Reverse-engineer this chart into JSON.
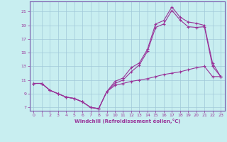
{
  "xlabel": "Windchill (Refroidissement éolien,°C)",
  "bg_color": "#c8eef0",
  "grid_color": "#a0c8d8",
  "line_color": "#993399",
  "spine_color": "#7755aa",
  "xlim": [
    -0.5,
    23.5
  ],
  "ylim": [
    6.5,
    22.5
  ],
  "xticks": [
    0,
    1,
    2,
    3,
    4,
    5,
    6,
    7,
    8,
    9,
    10,
    11,
    12,
    13,
    14,
    15,
    16,
    17,
    18,
    19,
    20,
    21,
    22,
    23
  ],
  "yticks": [
    7,
    9,
    11,
    13,
    15,
    17,
    19,
    21
  ],
  "series1_x": [
    0,
    1,
    2,
    3,
    4,
    5,
    6,
    7,
    8,
    9,
    10,
    11,
    12,
    13,
    14,
    15,
    16,
    17,
    18,
    19,
    20,
    21,
    22,
    23
  ],
  "series1_y": [
    10.5,
    10.5,
    9.5,
    9.0,
    8.5,
    8.3,
    7.8,
    7.0,
    6.8,
    9.3,
    10.2,
    10.5,
    10.8,
    11.0,
    11.2,
    11.5,
    11.8,
    12.0,
    12.2,
    12.5,
    12.8,
    13.0,
    11.5,
    11.5
  ],
  "series2_x": [
    0,
    1,
    2,
    3,
    4,
    5,
    6,
    7,
    8,
    9,
    10,
    11,
    12,
    13,
    14,
    15,
    16,
    17,
    18,
    19,
    20,
    21,
    22,
    23
  ],
  "series2_y": [
    10.5,
    10.5,
    9.5,
    9.0,
    8.5,
    8.3,
    7.8,
    7.0,
    6.8,
    9.3,
    10.8,
    11.3,
    12.8,
    13.5,
    15.5,
    19.2,
    19.7,
    21.7,
    20.2,
    19.5,
    19.3,
    19.0,
    13.5,
    11.5
  ],
  "series3_x": [
    0,
    1,
    2,
    3,
    4,
    5,
    6,
    7,
    8,
    9,
    10,
    11,
    12,
    13,
    14,
    15,
    16,
    17,
    18,
    19,
    20,
    21,
    22,
    23
  ],
  "series3_y": [
    10.5,
    10.5,
    9.5,
    9.0,
    8.5,
    8.3,
    7.8,
    7.0,
    6.8,
    9.3,
    10.5,
    11.0,
    12.2,
    13.2,
    15.2,
    18.7,
    19.2,
    21.2,
    19.8,
    18.8,
    18.7,
    18.8,
    13.0,
    11.5
  ]
}
